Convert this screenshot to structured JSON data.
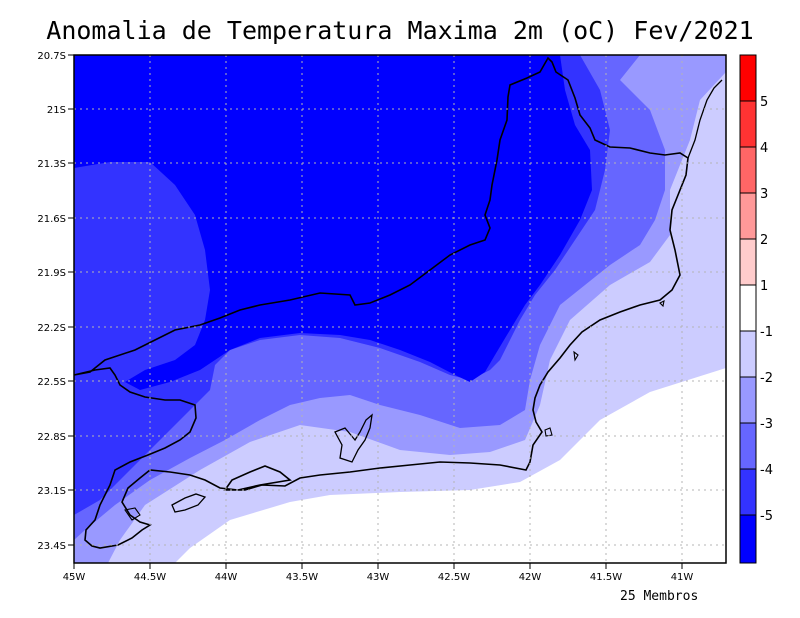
{
  "title": "Anomalia de Temperatura Maxima 2m (oC) Fev/2021",
  "footer": "25 Membros",
  "lat_ticks": [
    "20.7S",
    "21S",
    "21.3S",
    "21.6S",
    "21.9S",
    "22.2S",
    "22.5S",
    "22.8S",
    "23.1S",
    "23.4S"
  ],
  "lon_ticks": [
    "45W",
    "44.5W",
    "44W",
    "43.5W",
    "43W",
    "42.5W",
    "42W",
    "41.5W",
    "41W"
  ],
  "colorbar": {
    "labels": [
      "5",
      "4",
      "3",
      "2",
      "1",
      "-1",
      "-2",
      "-3",
      "-4",
      "-5"
    ],
    "colors": [
      "#ff0000",
      "#ff3333",
      "#ff6666",
      "#ff9999",
      "#ffcccc",
      "#ffffff",
      "#ccccff",
      "#9999ff",
      "#6666ff",
      "#3333ff",
      "#0000ff"
    ]
  },
  "map": {
    "fill_colors": {
      "c_white": "#ffffff",
      "c_m1": "#ccccff",
      "c_m2": "#9999ff",
      "c_m3": "#6666ff",
      "c_m4": "#3333ff",
      "c_m5": "#0000ff"
    }
  }
}
